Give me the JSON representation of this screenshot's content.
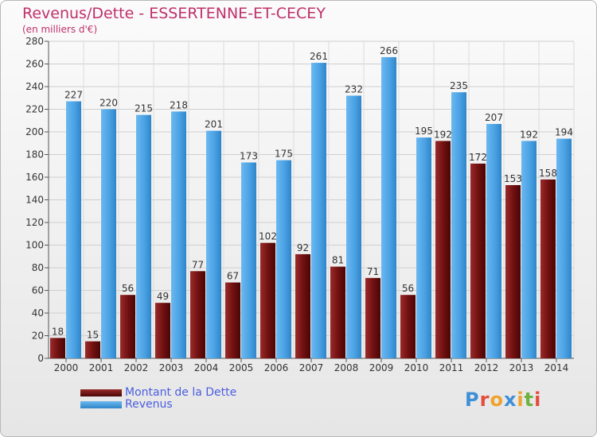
{
  "title": "Revenus/Dette - ESSERTENNE-ET-CECEY",
  "subtitle": "(en milliers d'€)",
  "logo": {
    "text": "Proxiti",
    "colors": [
      "#3e8fd6",
      "#e64c3c",
      "#f0a32d",
      "#3e8fd6",
      "#f0a32d",
      "#6cb33f",
      "#e64c3c"
    ]
  },
  "colors": {
    "dette": "#7a1414",
    "revenus": "#49a3e6",
    "title": "#c0306a",
    "legend_text": "#4a5de0"
  },
  "chart_data": {
    "type": "bar",
    "title": "Revenus/Dette - ESSERTENNE-ET-CECEY",
    "ylabel": "(en milliers d'€)",
    "categories": [
      "2000",
      "2001",
      "2002",
      "2003",
      "2004",
      "2005",
      "2006",
      "2007",
      "2008",
      "2009",
      "2010",
      "2011",
      "2012",
      "2013",
      "2014"
    ],
    "series": [
      {
        "name": "Montant de la Dette",
        "values": [
          18,
          15,
          56,
          49,
          77,
          67,
          102,
          92,
          81,
          71,
          56,
          192,
          172,
          153,
          158
        ]
      },
      {
        "name": "Revenus",
        "values": [
          227,
          220,
          215,
          218,
          201,
          173,
          175,
          261,
          232,
          266,
          195,
          235,
          207,
          192,
          194
        ]
      }
    ],
    "ylim": [
      0,
      280
    ],
    "yticks": [
      0,
      20,
      40,
      60,
      80,
      100,
      120,
      140,
      160,
      180,
      200,
      220,
      240,
      260,
      280
    ],
    "grid": true,
    "legend_position": "bottom-left"
  }
}
